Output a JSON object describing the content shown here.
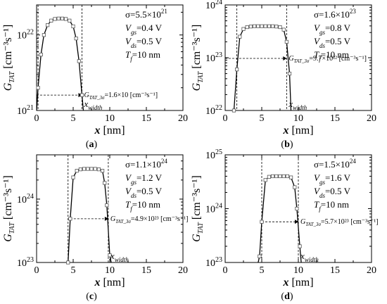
{
  "chart_data": [
    {
      "type": "line",
      "panel_label": "(a)",
      "xlabel": "x [nm]",
      "ylabel_main": "G",
      "ylabel_sub": "TAT",
      "ylabel_unit": " [cm⁻³s⁻¹]",
      "xlim": [
        0,
        20
      ],
      "ylim": [
        1e+21,
        2.5e+22
      ],
      "yscale": "log",
      "xticks": [
        "0",
        "5",
        "10",
        "15",
        "20"
      ],
      "yticks": [
        {
          "value": 1e+21,
          "base": "10",
          "exp": "21"
        },
        {
          "value": 1e+22,
          "base": "10",
          "exp": "22"
        }
      ],
      "x": [
        0.2,
        0.6,
        1.0,
        1.5,
        2.0,
        2.5,
        3.0,
        3.5,
        4.0,
        4.5,
        5.0,
        5.4,
        5.8,
        6.2
      ],
      "y": [
        2e+21,
        5.5e+21,
        1e+22,
        1.35e+22,
        1.55e+22,
        1.63e+22,
        1.65e+22,
        1.65e+22,
        1.63e+22,
        1.55e+22,
        1.3e+22,
        9e+21,
        4.5e+21,
        1.6e+21
      ],
      "vlines": [
        0.2,
        6.2
      ],
      "hline": {
        "y": 1.6e+21,
        "x_from": 0,
        "x_to": 6.2
      },
      "params": [
        {
          "main": "σ=5.5×10",
          "sup": "21",
          "rest": ""
        },
        {
          "main": "V",
          "sub": "gs",
          "rest": "=0.4 V"
        },
        {
          "main": "V",
          "sub": "ds",
          "rest": "=0.5 V"
        },
        {
          "main": "T",
          "sub": "f",
          "rest": "=10 nm"
        }
      ],
      "annotation": {
        "main": "G",
        "sub": "TAT_3σ",
        "rest": "=1.6×10 [cm⁻³s⁻¹]"
      },
      "width_label": {
        "main": "x",
        "sub": "width"
      }
    },
    {
      "type": "line",
      "panel_label": "(b)",
      "xlabel": "x [nm]",
      "ylabel_main": "G",
      "ylabel_sub": "TAT",
      "ylabel_unit": " [cm⁻³s⁻¹]",
      "xlim": [
        0,
        20
      ],
      "ylim": [
        1e+22,
        1e+24
      ],
      "yscale": "log",
      "xticks": [
        "0",
        "5",
        "10",
        "15",
        "20"
      ],
      "yticks": [
        {
          "value": 1e+22,
          "base": "10",
          "exp": "22"
        },
        {
          "value": 1e+23,
          "base": "10",
          "exp": "23"
        },
        {
          "value": 1e+24,
          "base": "10",
          "exp": "24"
        }
      ],
      "x": [
        1.2,
        1.6,
        2.0,
        2.5,
        3.0,
        3.5,
        4.0,
        4.5,
        5.0,
        5.5,
        6.0,
        6.5,
        7.0,
        7.5,
        8.0,
        8.4,
        8.8
      ],
      "y": [
        1e+22,
        6e+22,
        2.5e+23,
        3.5e+23,
        3.8e+23,
        3.9e+23,
        3.95e+23,
        3.95e+23,
        3.95e+23,
        3.95e+23,
        3.95e+23,
        3.95e+23,
        3.9e+23,
        3.8e+23,
        3.4e+23,
        2e+23,
        5e+22
      ],
      "vlines": [
        1.6,
        8.4
      ],
      "hline": {
        "y": 9.7e+22,
        "x_from": 0,
        "x_to": 8.4
      },
      "params": [
        {
          "main": "σ=1.6×10",
          "sup": "23",
          "rest": ""
        },
        {
          "main": "V",
          "sub": "gs",
          "rest": "=0.8 V"
        },
        {
          "main": "V",
          "sub": "ds",
          "rest": "=0.5 V"
        },
        {
          "main": "T",
          "sub": "f",
          "rest": "=10 nm"
        }
      ],
      "annotation": {
        "main": "G",
        "sub": "TAT_3σ",
        "rest": "=9.7×10²² [cm⁻³s⁻¹]"
      },
      "width_label": {
        "main": "x",
        "sub": "width"
      }
    },
    {
      "type": "line",
      "panel_label": "(c)",
      "xlabel": "x [nm]",
      "ylabel_main": "G",
      "ylabel_sub": "TAT",
      "ylabel_unit": " [cm⁻³s⁻¹]",
      "xlim": [
        0,
        20
      ],
      "ylim": [
        1e+23,
        5e+24
      ],
      "yscale": "log",
      "xticks": [
        "0",
        "5",
        "10",
        "15",
        "20"
      ],
      "yticks": [
        {
          "value": 1e+23,
          "base": "10",
          "exp": "23"
        },
        {
          "value": 1e+24,
          "base": "10",
          "exp": "24"
        }
      ],
      "x": [
        4.3,
        4.6,
        5.0,
        5.5,
        6.0,
        6.5,
        7.0,
        7.5,
        8.0,
        8.5,
        9.0,
        9.3,
        9.6,
        10.0
      ],
      "y": [
        1e+23,
        4.9e+23,
        2.2e+24,
        2.8e+24,
        2.95e+24,
        3e+24,
        3e+24,
        3e+24,
        3e+24,
        2.95e+24,
        2.8e+24,
        1.8e+24,
        8e+23,
        1.3e+23
      ],
      "vlines": [
        4.3,
        9.8
      ],
      "hline": {
        "y": 4.9e+23,
        "x_from": 4.6,
        "x_to": 9.8
      },
      "params": [
        {
          "main": "σ=1.1×10",
          "sup": "24",
          "rest": ""
        },
        {
          "main": "V",
          "sub": "gs",
          "rest": "=1.2 V"
        },
        {
          "main": "V",
          "sub": "ds",
          "rest": "=0.5 V"
        },
        {
          "main": "T",
          "sub": "f",
          "rest": "=10 nm"
        }
      ],
      "annotation": {
        "main": "G",
        "sub": "TAT_3σ",
        "rest": "=4.9×10²³ [cm⁻³s⁻¹]"
      },
      "width_label": {
        "main": "x",
        "sub": "width"
      }
    },
    {
      "type": "line",
      "panel_label": "(d)",
      "xlabel": "x [nm]",
      "ylabel_main": "G",
      "ylabel_sub": "TAT",
      "ylabel_unit": " [cm⁻³s⁻¹]",
      "xlim": [
        0,
        20
      ],
      "ylim": [
        1e+23,
        1e+25
      ],
      "yscale": "log",
      "xticks": [
        "0",
        "5",
        "10",
        "15",
        "20"
      ],
      "yticks": [
        {
          "value": 1e+23,
          "base": "10",
          "exp": "23"
        },
        {
          "value": 1e+24,
          "base": "10",
          "exp": "24"
        },
        {
          "value": 1e+25,
          "base": "10",
          "exp": "25"
        }
      ],
      "x": [
        4.7,
        5.0,
        5.5,
        6.0,
        6.5,
        7.0,
        7.5,
        8.0,
        8.5,
        9.0,
        9.5,
        9.8,
        10.2
      ],
      "y": [
        1.3e+23,
        5.7e+23,
        3.4e+24,
        3.9e+24,
        4e+24,
        4e+24,
        4e+24,
        4e+24,
        4e+24,
        3.8e+24,
        2.5e+24,
        1e+24,
        2e+23
      ],
      "vlines": [
        5.0,
        10.0
      ],
      "hline": {
        "y": 5.7e+23,
        "x_from": 5.0,
        "x_to": 10.0
      },
      "params": [
        {
          "main": "σ=1.5×10",
          "sup": "24",
          "rest": ""
        },
        {
          "main": "V",
          "sub": "gs",
          "rest": "=1.6 V"
        },
        {
          "main": "V",
          "sub": "ds",
          "rest": "=0.5 V"
        },
        {
          "main": "T",
          "sub": "f",
          "rest": "=10 nm"
        }
      ],
      "annotation": {
        "main": "G",
        "sub": "TAT_3σ",
        "rest": "=5.7×10²³ [cm⁻³s⁻¹]"
      },
      "width_label": {
        "main": "x",
        "sub": "width"
      }
    }
  ]
}
